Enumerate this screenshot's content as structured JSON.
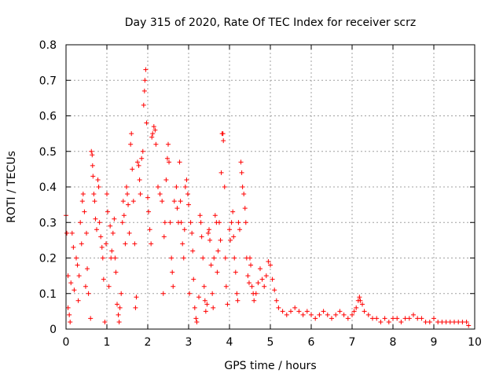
{
  "chart_data": {
    "type": "scatter",
    "title": "Day 315 of 2020, Rate Of TEC Index for receiver scrz",
    "xlabel": "GPS time / hours",
    "ylabel": "ROTI / TECUs",
    "xlim": [
      0,
      10
    ],
    "ylim": [
      0,
      0.8
    ],
    "x_ticks": [
      0,
      1,
      2,
      3,
      4,
      5,
      6,
      7,
      8,
      9,
      10
    ],
    "y_ticks": [
      0,
      0.1,
      0.2,
      0.3,
      0.4,
      0.5,
      0.6,
      0.7,
      0.8
    ],
    "x_tick_labels": [
      "0",
      "1",
      "2",
      "3",
      "4",
      "5",
      "6",
      "7",
      "8",
      "9",
      "10"
    ],
    "y_tick_labels": [
      "0",
      "0.1",
      "0.2",
      "0.3",
      "0.4",
      "0.5",
      "0.6",
      "0.7",
      "0.8"
    ],
    "grid": true,
    "marker": "+",
    "color": "#ff0000",
    "series": [
      {
        "name": "ROTI",
        "points": [
          [
            0.0,
            0.32
          ],
          [
            0.02,
            0.27
          ],
          [
            0.05,
            0.15
          ],
          [
            0.05,
            0.06
          ],
          [
            0.08,
            0.04
          ],
          [
            0.1,
            0.02
          ],
          [
            0.12,
            0.13
          ],
          [
            0.15,
            0.27
          ],
          [
            0.18,
            0.23
          ],
          [
            0.2,
            0.11
          ],
          [
            0.25,
            0.2
          ],
          [
            0.28,
            0.18
          ],
          [
            0.3,
            0.08
          ],
          [
            0.32,
            0.15
          ],
          [
            0.35,
            0.3
          ],
          [
            0.38,
            0.24
          ],
          [
            0.4,
            0.36
          ],
          [
            0.42,
            0.38
          ],
          [
            0.45,
            0.33
          ],
          [
            0.48,
            0.12
          ],
          [
            0.5,
            0.27
          ],
          [
            0.52,
            0.17
          ],
          [
            0.55,
            0.1
          ],
          [
            0.6,
            0.03
          ],
          [
            0.62,
            0.5
          ],
          [
            0.64,
            0.49
          ],
          [
            0.65,
            0.46
          ],
          [
            0.66,
            0.43
          ],
          [
            0.68,
            0.38
          ],
          [
            0.7,
            0.36
          ],
          [
            0.72,
            0.31
          ],
          [
            0.75,
            0.28
          ],
          [
            0.78,
            0.42
          ],
          [
            0.8,
            0.4
          ],
          [
            0.82,
            0.3
          ],
          [
            0.85,
            0.26
          ],
          [
            0.88,
            0.23
          ],
          [
            0.9,
            0.2
          ],
          [
            0.92,
            0.14
          ],
          [
            0.95,
            0.02
          ],
          [
            0.98,
            0.24
          ],
          [
            1.0,
            0.38
          ],
          [
            1.02,
            0.33
          ],
          [
            1.05,
            0.12
          ],
          [
            1.08,
            0.29
          ],
          [
            1.1,
            0.2
          ],
          [
            1.12,
            0.22
          ],
          [
            1.15,
            0.27
          ],
          [
            1.18,
            0.31
          ],
          [
            1.2,
            0.2
          ],
          [
            1.22,
            0.16
          ],
          [
            1.25,
            0.07
          ],
          [
            1.28,
            0.04
          ],
          [
            1.3,
            0.02
          ],
          [
            1.32,
            0.06
          ],
          [
            1.35,
            0.1
          ],
          [
            1.38,
            0.3
          ],
          [
            1.4,
            0.36
          ],
          [
            1.42,
            0.32
          ],
          [
            1.45,
            0.24
          ],
          [
            1.48,
            0.4
          ],
          [
            1.5,
            0.38
          ],
          [
            1.52,
            0.35
          ],
          [
            1.55,
            0.27
          ],
          [
            1.58,
            0.52
          ],
          [
            1.6,
            0.55
          ],
          [
            1.62,
            0.45
          ],
          [
            1.65,
            0.36
          ],
          [
            1.68,
            0.24
          ],
          [
            1.7,
            0.06
          ],
          [
            1.72,
            0.09
          ],
          [
            1.75,
            0.47
          ],
          [
            1.78,
            0.46
          ],
          [
            1.8,
            0.42
          ],
          [
            1.82,
            0.38
          ],
          [
            1.85,
            0.48
          ],
          [
            1.88,
            0.5
          ],
          [
            1.9,
            0.63
          ],
          [
            1.92,
            0.67
          ],
          [
            1.93,
            0.7
          ],
          [
            1.95,
            0.73
          ],
          [
            1.97,
            0.58
          ],
          [
            2.0,
            0.37
          ],
          [
            2.02,
            0.33
          ],
          [
            2.05,
            0.28
          ],
          [
            2.08,
            0.24
          ],
          [
            2.1,
            0.54
          ],
          [
            2.12,
            0.55
          ],
          [
            2.15,
            0.57
          ],
          [
            2.18,
            0.56
          ],
          [
            2.2,
            0.52
          ],
          [
            2.25,
            0.4
          ],
          [
            2.3,
            0.38
          ],
          [
            2.35,
            0.36
          ],
          [
            2.38,
            0.1
          ],
          [
            2.4,
            0.26
          ],
          [
            2.42,
            0.3
          ],
          [
            2.45,
            0.42
          ],
          [
            2.48,
            0.48
          ],
          [
            2.5,
            0.52
          ],
          [
            2.52,
            0.47
          ],
          [
            2.55,
            0.3
          ],
          [
            2.58,
            0.2
          ],
          [
            2.6,
            0.16
          ],
          [
            2.62,
            0.12
          ],
          [
            2.65,
            0.36
          ],
          [
            2.7,
            0.4
          ],
          [
            2.72,
            0.34
          ],
          [
            2.75,
            0.3
          ],
          [
            2.78,
            0.47
          ],
          [
            2.8,
            0.36
          ],
          [
            2.82,
            0.3
          ],
          [
            2.85,
            0.24
          ],
          [
            2.88,
            0.2
          ],
          [
            2.9,
            0.28
          ],
          [
            2.92,
            0.4
          ],
          [
            2.95,
            0.42
          ],
          [
            2.98,
            0.38
          ],
          [
            3.0,
            0.35
          ],
          [
            3.02,
            0.1
          ],
          [
            3.05,
            0.3
          ],
          [
            3.08,
            0.27
          ],
          [
            3.1,
            0.22
          ],
          [
            3.12,
            0.14
          ],
          [
            3.15,
            0.06
          ],
          [
            3.18,
            0.03
          ],
          [
            3.2,
            0.02
          ],
          [
            3.25,
            0.09
          ],
          [
            3.28,
            0.32
          ],
          [
            3.3,
            0.3
          ],
          [
            3.32,
            0.26
          ],
          [
            3.35,
            0.2
          ],
          [
            3.38,
            0.12
          ],
          [
            3.4,
            0.08
          ],
          [
            3.42,
            0.05
          ],
          [
            3.45,
            0.07
          ],
          [
            3.48,
            0.27
          ],
          [
            3.5,
            0.28
          ],
          [
            3.52,
            0.25
          ],
          [
            3.55,
            0.18
          ],
          [
            3.58,
            0.1
          ],
          [
            3.6,
            0.06
          ],
          [
            3.62,
            0.2
          ],
          [
            3.65,
            0.32
          ],
          [
            3.68,
            0.3
          ],
          [
            3.7,
            0.16
          ],
          [
            3.72,
            0.22
          ],
          [
            3.75,
            0.3
          ],
          [
            3.78,
            0.25
          ],
          [
            3.8,
            0.44
          ],
          [
            3.82,
            0.55
          ],
          [
            3.84,
            0.55
          ],
          [
            3.85,
            0.53
          ],
          [
            3.88,
            0.4
          ],
          [
            3.9,
            0.2
          ],
          [
            3.92,
            0.12
          ],
          [
            3.95,
            0.07
          ],
          [
            4.0,
            0.28
          ],
          [
            4.02,
            0.25
          ],
          [
            4.05,
            0.3
          ],
          [
            4.08,
            0.33
          ],
          [
            4.1,
            0.26
          ],
          [
            4.12,
            0.2
          ],
          [
            4.15,
            0.16
          ],
          [
            4.18,
            0.1
          ],
          [
            4.2,
            0.08
          ],
          [
            4.22,
            0.3
          ],
          [
            4.25,
            0.28
          ],
          [
            4.28,
            0.47
          ],
          [
            4.3,
            0.44
          ],
          [
            4.32,
            0.4
          ],
          [
            4.35,
            0.38
          ],
          [
            4.38,
            0.34
          ],
          [
            4.4,
            0.3
          ],
          [
            4.42,
            0.2
          ],
          [
            4.45,
            0.15
          ],
          [
            4.48,
            0.13
          ],
          [
            4.5,
            0.2
          ],
          [
            4.52,
            0.18
          ],
          [
            4.55,
            0.12
          ],
          [
            4.58,
            0.1
          ],
          [
            4.6,
            0.08
          ],
          [
            4.65,
            0.1
          ],
          [
            4.7,
            0.13
          ],
          [
            4.75,
            0.17
          ],
          [
            4.8,
            0.14
          ],
          [
            4.85,
            0.12
          ],
          [
            4.9,
            0.15
          ],
          [
            4.95,
            0.19
          ],
          [
            5.0,
            0.18
          ],
          [
            5.05,
            0.14
          ],
          [
            5.1,
            0.11
          ],
          [
            5.15,
            0.08
          ],
          [
            5.2,
            0.06
          ],
          [
            5.3,
            0.05
          ],
          [
            5.4,
            0.04
          ],
          [
            5.5,
            0.05
          ],
          [
            5.6,
            0.06
          ],
          [
            5.7,
            0.05
          ],
          [
            5.8,
            0.04
          ],
          [
            5.9,
            0.05
          ],
          [
            6.0,
            0.04
          ],
          [
            6.1,
            0.03
          ],
          [
            6.2,
            0.04
          ],
          [
            6.3,
            0.05
          ],
          [
            6.4,
            0.04
          ],
          [
            6.5,
            0.03
          ],
          [
            6.6,
            0.04
          ],
          [
            6.7,
            0.05
          ],
          [
            6.8,
            0.04
          ],
          [
            6.9,
            0.03
          ],
          [
            7.0,
            0.04
          ],
          [
            7.05,
            0.05
          ],
          [
            7.1,
            0.06
          ],
          [
            7.15,
            0.08
          ],
          [
            7.18,
            0.09
          ],
          [
            7.2,
            0.08
          ],
          [
            7.25,
            0.07
          ],
          [
            7.3,
            0.05
          ],
          [
            7.4,
            0.04
          ],
          [
            7.5,
            0.03
          ],
          [
            7.6,
            0.03
          ],
          [
            7.7,
            0.02
          ],
          [
            7.8,
            0.03
          ],
          [
            7.9,
            0.02
          ],
          [
            8.0,
            0.03
          ],
          [
            8.1,
            0.03
          ],
          [
            8.2,
            0.02
          ],
          [
            8.3,
            0.03
          ],
          [
            8.4,
            0.03
          ],
          [
            8.5,
            0.04
          ],
          [
            8.6,
            0.03
          ],
          [
            8.7,
            0.03
          ],
          [
            8.8,
            0.02
          ],
          [
            8.9,
            0.02
          ],
          [
            9.0,
            0.03
          ],
          [
            9.1,
            0.02
          ],
          [
            9.2,
            0.02
          ],
          [
            9.3,
            0.02
          ],
          [
            9.4,
            0.02
          ],
          [
            9.5,
            0.02
          ],
          [
            9.6,
            0.02
          ],
          [
            9.7,
            0.02
          ],
          [
            9.8,
            0.02
          ],
          [
            9.85,
            0.01
          ]
        ]
      }
    ]
  }
}
